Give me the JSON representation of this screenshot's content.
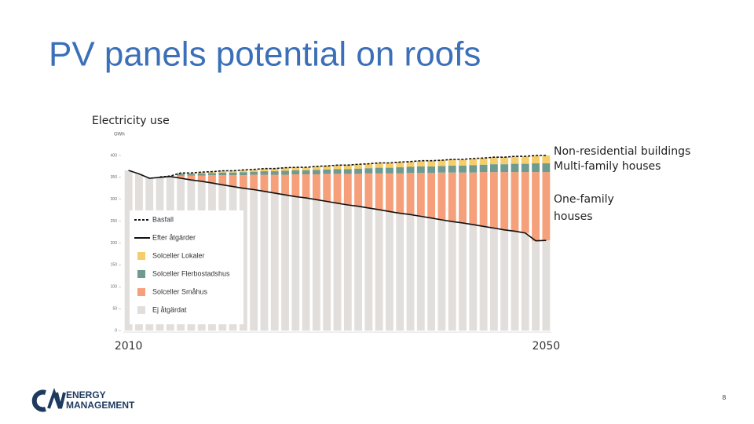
{
  "slide": {
    "title": "PV panels potential on roofs",
    "page_number": "8",
    "logo": [
      "ENERGY",
      "MANAGEMENT"
    ]
  },
  "chart_data": {
    "type": "bar",
    "stacked": true,
    "subtitle": "Electricity use",
    "y_label": "GWh",
    "categories": [
      "2010",
      null,
      null,
      null,
      null,
      null,
      null,
      null,
      null,
      null,
      null,
      null,
      null,
      null,
      null,
      null,
      null,
      null,
      null,
      null,
      null,
      null,
      null,
      null,
      null,
      null,
      null,
      null,
      null,
      null,
      null,
      null,
      null,
      null,
      null,
      null,
      null,
      null,
      null,
      null,
      "2050"
    ],
    "ylim": [
      0,
      400
    ],
    "yticks": [
      0,
      50,
      100,
      150,
      200,
      250,
      300,
      350,
      400
    ],
    "series": [
      {
        "name": "Ej åtgärdat",
        "color": "#e2dedb",
        "values": [
          366,
          358,
          348,
          350,
          352,
          348,
          344,
          341,
          337,
          333,
          329,
          325,
          322,
          318,
          314,
          310,
          306,
          303,
          299,
          295,
          291,
          287,
          284,
          280,
          276,
          272,
          268,
          265,
          261,
          257,
          253,
          249,
          246,
          242,
          238,
          234,
          230,
          227,
          223,
          205,
          206
        ]
      },
      {
        "name": "Solceller Småhus",
        "color": "#f5a07a",
        "values": [
          0,
          0,
          0,
          0,
          1,
          6,
          10,
          13,
          18,
          22,
          26,
          30,
          34,
          38,
          42,
          46,
          51,
          54,
          58,
          63,
          67,
          71,
          74,
          79,
          83,
          87,
          91,
          95,
          99,
          103,
          108,
          112,
          115,
          119,
          124,
          128,
          132,
          135,
          139,
          157,
          156
        ]
      },
      {
        "name": "Solceller Flerbostadshus",
        "color": "#6f9a8f",
        "values": [
          0,
          0,
          0,
          0,
          0,
          4,
          4,
          5,
          5,
          6,
          6,
          7,
          7,
          8,
          8,
          9,
          9,
          9,
          10,
          10,
          11,
          11,
          12,
          12,
          13,
          13,
          14,
          14,
          15,
          15,
          15,
          16,
          16,
          17,
          17,
          18,
          18,
          19,
          19,
          20,
          20
        ]
      },
      {
        "name": "Solceller Lokaler",
        "color": "#f6cd6b",
        "values": [
          0,
          0,
          0,
          0,
          0,
          2,
          2,
          3,
          3,
          4,
          4,
          5,
          5,
          6,
          6,
          7,
          7,
          7,
          8,
          8,
          9,
          9,
          10,
          10,
          11,
          11,
          12,
          12,
          13,
          13,
          13,
          14,
          14,
          15,
          15,
          16,
          16,
          17,
          17,
          18,
          18
        ]
      }
    ],
    "lines": [
      {
        "name": "Basfall",
        "color": "#111111",
        "dashed": true,
        "values": [
          null,
          null,
          null,
          351,
          353,
          360,
          360,
          362,
          363,
          365,
          365,
          367,
          368,
          370,
          370,
          372,
          373,
          373,
          375,
          376,
          378,
          378,
          380,
          381,
          383,
          383,
          385,
          386,
          388,
          388,
          389,
          391,
          391,
          393,
          394,
          396,
          396,
          398,
          398,
          400,
          400
        ]
      },
      {
        "name": "Efter åtgärder",
        "color": "#111111",
        "dashed": false,
        "values": [
          366,
          358,
          348,
          350,
          352,
          348,
          344,
          341,
          337,
          333,
          329,
          325,
          322,
          318,
          314,
          310,
          306,
          303,
          299,
          295,
          291,
          287,
          284,
          280,
          276,
          272,
          268,
          265,
          261,
          257,
          253,
          249,
          246,
          242,
          238,
          234,
          230,
          227,
          223,
          205,
          206
        ]
      }
    ],
    "annotations": [
      "Non-residential buildings",
      "Multi-family houses",
      "One-family houses"
    ]
  }
}
